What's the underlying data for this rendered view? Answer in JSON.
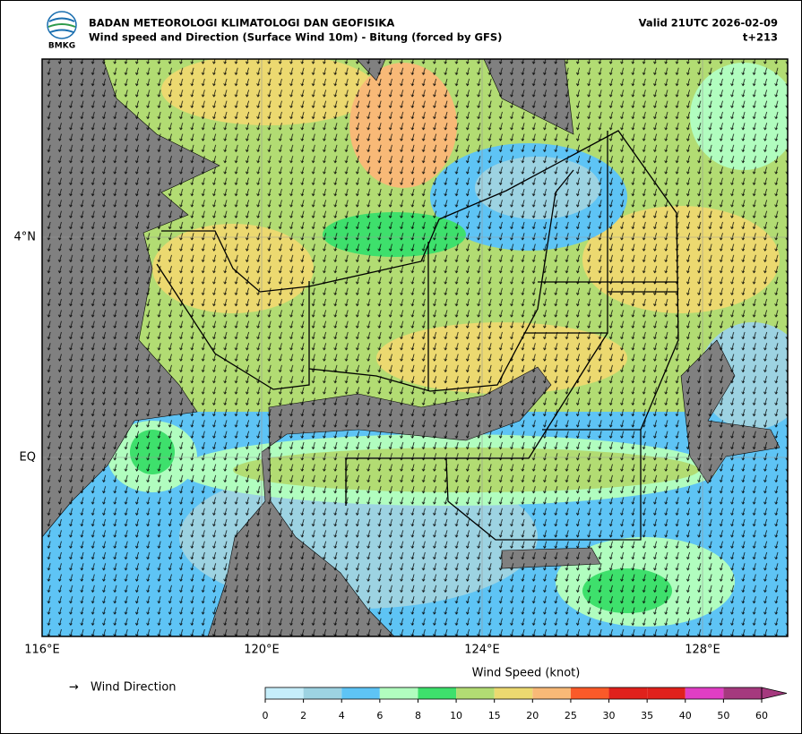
{
  "header": {
    "agency": "BADAN METEOROLOGI KLIMATOLOGI DAN GEOFISIKA",
    "subtitle": "Wind speed and Direction (Surface Wind 10m) - Bitung (forced by GFS)",
    "valid": "Valid 21UTC 2026-02-09",
    "lead": "t+213",
    "logo_text": "BMKG"
  },
  "map": {
    "lon_labels": [
      "116°E",
      "120°E",
      "124°E",
      "128°E"
    ],
    "lat_labels": [
      "4°N",
      "EQ"
    ]
  },
  "legend": {
    "arrow": "→",
    "label": "Wind Direction"
  },
  "colorbar": {
    "title": "Wind Speed (knot)",
    "bounds": [
      0,
      2,
      4,
      6,
      8,
      10,
      15,
      20,
      25,
      30,
      35,
      40,
      50,
      60
    ],
    "colors": [
      "#c6eefa",
      "#9dd3e2",
      "#5ec4f5",
      "#b1fdbf",
      "#3ee06c",
      "#b2dc73",
      "#ecd970",
      "#f8b977",
      "#fa5a29",
      "#e0211c",
      "#e0211c",
      "#e03ec4",
      "#a5397e"
    ]
  }
}
